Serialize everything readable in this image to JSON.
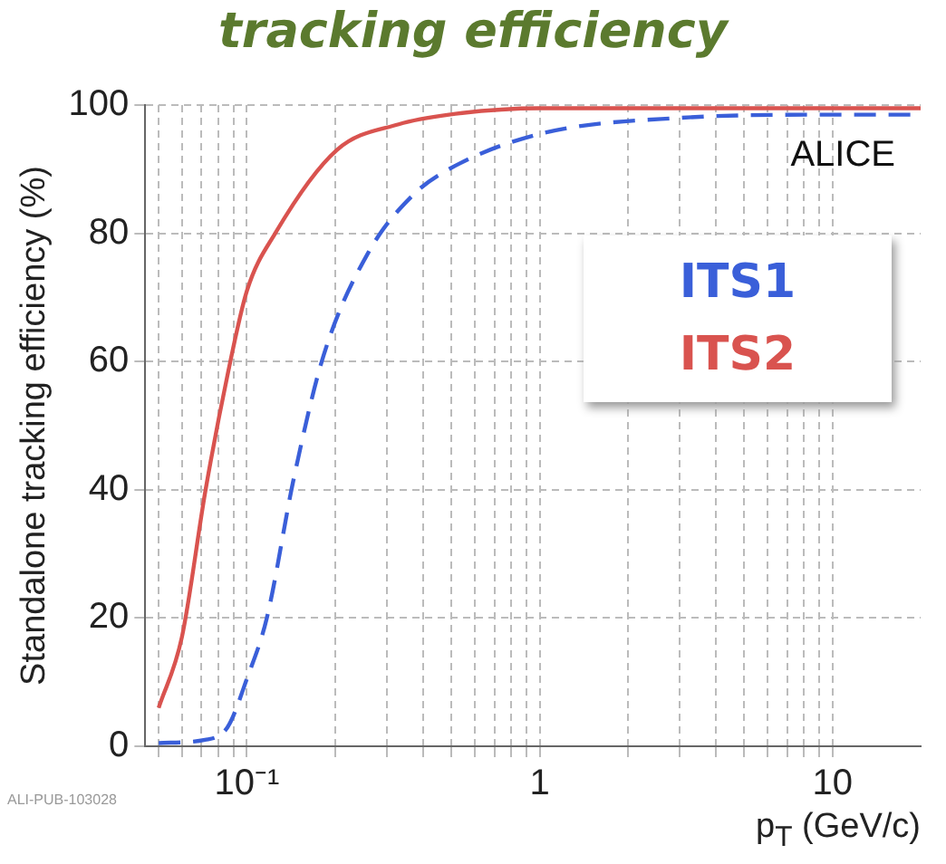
{
  "chart_data": {
    "type": "line",
    "title": "tracking efficiency",
    "xlabel": "p$_{T}$ (GeV/c)",
    "ylabel": "Standalone tracking efficiency (%)",
    "annotations": [
      "ALICE",
      "ALI-PUB-103028"
    ],
    "log": "x",
    "grid": true,
    "legend": "top right",
    "marker": "none",
    "xlim": [
      0.045,
      20
    ],
    "ylim": [
      0,
      100
    ],
    "xticks": [
      {
        "value": 0.05,
        "label": null
      },
      {
        "value": 0.06,
        "label": null
      },
      {
        "value": 0.07,
        "label": null
      },
      {
        "value": 0.08,
        "label": null
      },
      {
        "value": 0.09,
        "label": null
      },
      {
        "value": 0.1,
        "label": "10⁻¹"
      },
      {
        "value": 0.2,
        "label": null
      },
      {
        "value": 0.3,
        "label": null
      },
      {
        "value": 0.4,
        "label": null
      },
      {
        "value": 0.5,
        "label": null
      },
      {
        "value": 0.6,
        "label": null
      },
      {
        "value": 0.7,
        "label": null
      },
      {
        "value": 0.8,
        "label": null
      },
      {
        "value": 0.9,
        "label": null
      },
      {
        "value": 1,
        "label": "1"
      },
      {
        "value": 2,
        "label": null
      },
      {
        "value": 3,
        "label": null
      },
      {
        "value": 4,
        "label": null
      },
      {
        "value": 5,
        "label": null
      },
      {
        "value": 6,
        "label": null
      },
      {
        "value": 7,
        "label": null
      },
      {
        "value": 8,
        "label": null
      },
      {
        "value": 9,
        "label": null
      },
      {
        "value": 10,
        "label": "10"
      }
    ],
    "yticks": [
      0,
      20,
      40,
      60,
      80,
      100
    ],
    "series": [
      {
        "name": "ITS1",
        "color": "#3a5fd9",
        "line_style": "dashed",
        "x": [
          0.05,
          0.072,
          0.086,
          0.1,
          0.117,
          0.145,
          0.183,
          0.26,
          0.37,
          0.49,
          1,
          3,
          10,
          20
        ],
        "values": [
          0.5,
          1,
          3,
          10.5,
          20,
          42,
          61,
          77,
          86,
          90,
          95.5,
          98,
          98.5,
          98.5
        ]
      },
      {
        "name": "ITS2",
        "color": "#d9534f",
        "line_style": "solid",
        "x": [
          0.05,
          0.06,
          0.0723,
          0.086,
          0.1,
          0.125,
          0.203,
          0.33,
          0.49,
          1,
          3,
          10,
          20
        ],
        "values": [
          6,
          17,
          40,
          58,
          71,
          80,
          93,
          97,
          98.5,
          99.5,
          99.5,
          99.5,
          99.5
        ]
      }
    ]
  }
}
